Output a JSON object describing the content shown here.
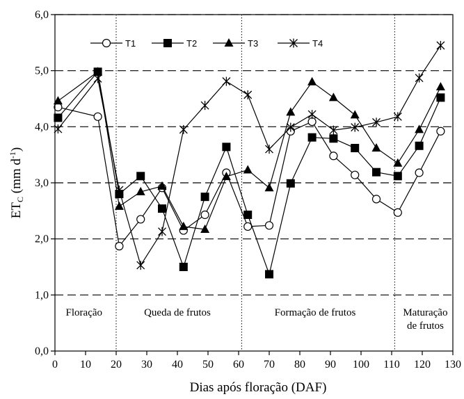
{
  "chart_data": {
    "type": "line",
    "xlabel": "Dias após floração (DAF)",
    "ylabel_main": "ET",
    "ylabel_sub": "C",
    "ylabel_unit_pre": " (mm d",
    "ylabel_unit_sup": "-1",
    "ylabel_unit_post": ")",
    "xlim": [
      0,
      130
    ],
    "ylim": [
      0,
      6
    ],
    "x_ticks": [
      0,
      10,
      20,
      30,
      40,
      50,
      60,
      70,
      80,
      90,
      100,
      110,
      120,
      130
    ],
    "x_tick_labels": [
      "0",
      "10",
      "20",
      "30",
      "40",
      "50",
      "60",
      "70",
      "80",
      "90",
      "100",
      "110",
      "120",
      "130"
    ],
    "y_ticks": [
      0,
      1,
      2,
      3,
      4,
      5,
      6
    ],
    "y_tick_labels": [
      "0,0",
      "1,0",
      "2,0",
      "3,0",
      "4,0",
      "5,0",
      "6,0"
    ],
    "grid": "horizontal-dashed",
    "legend_placement": "top-left",
    "phase_boundaries": [
      20,
      61,
      111
    ],
    "phases": [
      {
        "lines": [
          "Floração"
        ],
        "x_center": 9.5
      },
      {
        "lines": [
          "Queda de frutos"
        ],
        "x_center": 40
      },
      {
        "lines": [
          "Formação de frutos"
        ],
        "x_center": 85
      },
      {
        "lines": [
          "Maturação",
          "de frutos"
        ],
        "x_center": 121
      }
    ],
    "x": [
      1,
      14,
      21,
      28,
      35,
      42,
      49,
      56,
      63,
      70,
      77,
      84,
      91,
      98,
      105,
      112,
      119,
      126
    ],
    "series": [
      {
        "name": "T1",
        "marker": "open-circle",
        "values": [
          4.35,
          4.18,
          1.87,
          2.35,
          2.91,
          2.15,
          2.43,
          3.18,
          2.22,
          2.24,
          3.92,
          4.09,
          3.48,
          3.14,
          2.71,
          2.47,
          3.18,
          3.92
        ]
      },
      {
        "name": "T2",
        "marker": "filled-square",
        "values": [
          4.16,
          4.98,
          2.8,
          3.12,
          2.54,
          1.5,
          2.75,
          3.64,
          2.43,
          1.37,
          2.99,
          3.81,
          3.79,
          3.62,
          3.19,
          3.12,
          3.66,
          4.52
        ]
      },
      {
        "name": "T3",
        "marker": "filled-triangle",
        "values": [
          4.46,
          4.98,
          2.58,
          2.84,
          2.94,
          2.22,
          2.17,
          3.11,
          3.23,
          2.91,
          4.26,
          4.8,
          4.52,
          4.21,
          3.62,
          3.35,
          3.95,
          4.71
        ]
      },
      {
        "name": "T4",
        "marker": "star",
        "values": [
          3.96,
          4.86,
          2.87,
          1.53,
          2.13,
          3.95,
          4.38,
          4.81,
          4.57,
          3.6,
          3.99,
          4.22,
          3.94,
          3.99,
          4.08,
          4.18,
          4.87,
          5.45
        ]
      }
    ]
  }
}
